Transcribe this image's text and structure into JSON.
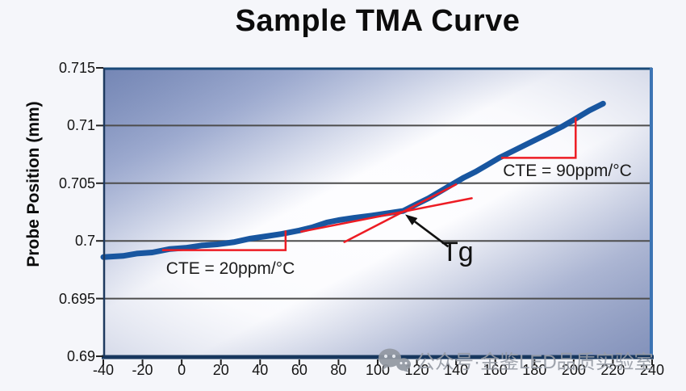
{
  "page": {
    "background": "#f5f6fa"
  },
  "watermark": {
    "icon": "wechat-icon",
    "text": "公众号·金鉴LED品质实验室",
    "color": "#979ca6"
  },
  "chart_data": {
    "type": "line",
    "title": "Sample TMA Curve",
    "xlabel": "",
    "ylabel": "Probe Position (mm)",
    "xlim": [
      -40,
      240
    ],
    "ylim": [
      0.69,
      0.715
    ],
    "x_ticks": [
      -40,
      -20,
      0,
      20,
      40,
      60,
      80,
      100,
      120,
      140,
      160,
      180,
      200,
      220,
      240
    ],
    "x_tick_labels": [
      "-40",
      "-20",
      "0",
      "20",
      "40",
      "60",
      "80",
      "100",
      "120",
      "140",
      "160",
      "180",
      "200",
      "220",
      "240"
    ],
    "y_ticks": [
      0.715,
      0.71,
      0.705,
      0.7,
      0.695,
      0.69
    ],
    "y_tick_labels": [
      "0.715",
      "0.71",
      "0.705",
      "0.7",
      "0.695",
      "0.69"
    ],
    "grid": "horizontal-only",
    "legend": "none",
    "colors": {
      "curve_blue": "#1856a0",
      "annotation_red": "#ed1c24",
      "grid_gray": "#4d4d4d",
      "axis_navy": "#17375e",
      "border_top_blue": "#1a4a78",
      "border_right_blue": "#3c74b4",
      "plot_corner_blue": "#5b71a8"
    },
    "series": [
      {
        "name": "probe-position",
        "color": "#1856a0",
        "points": [
          [
            -40,
            0.6986
          ],
          [
            -30,
            0.6987
          ],
          [
            -23,
            0.6989
          ],
          [
            -15,
            0.699
          ],
          [
            -6,
            0.6993
          ],
          [
            2,
            0.6994
          ],
          [
            10,
            0.6996
          ],
          [
            18,
            0.6997
          ],
          [
            27,
            0.6999
          ],
          [
            35,
            0.7002
          ],
          [
            43,
            0.7004
          ],
          [
            51,
            0.7006
          ],
          [
            60,
            0.7009
          ],
          [
            67,
            0.7012
          ],
          [
            74,
            0.7016
          ],
          [
            80,
            0.7018
          ],
          [
            88,
            0.702
          ],
          [
            97,
            0.7022
          ],
          [
            105,
            0.7024
          ],
          [
            113,
            0.7026
          ],
          [
            120,
            0.7032
          ],
          [
            126,
            0.7037
          ],
          [
            132,
            0.7043
          ],
          [
            138,
            0.7049
          ],
          [
            144,
            0.7055
          ],
          [
            150,
            0.706
          ],
          [
            156,
            0.7066
          ],
          [
            162,
            0.7072
          ],
          [
            175,
            0.7083
          ],
          [
            187,
            0.7093
          ],
          [
            194,
            0.7099
          ],
          [
            200,
            0.7105
          ],
          [
            208,
            0.7113
          ],
          [
            215,
            0.7119
          ]
        ]
      }
    ],
    "annotations": {
      "cte_low": {
        "label": "CTE = 20ppm/°C",
        "triangle": {
          "x1": -10,
          "x2": 53,
          "y_base": 0.6992,
          "y_top": 0.7009
        }
      },
      "cte_high": {
        "label": "CTE = 90ppm/°C",
        "triangle": {
          "x1": 163,
          "x2": 201,
          "y_base": 0.7072,
          "y_top": 0.7107
        }
      },
      "tangent_low": {
        "x1": 61,
        "y1": 0.7008,
        "x2": 148,
        "y2": 0.7037
      },
      "tangent_high": {
        "x1": 83,
        "y1": 0.6999,
        "x2": 140,
        "y2": 0.7049
      },
      "tg": {
        "label": "Tg",
        "arrow_tip": {
          "x": 114,
          "y": 0.7023
        },
        "arrow_tail": {
          "x": 136,
          "y": 0.6995
        }
      }
    }
  }
}
